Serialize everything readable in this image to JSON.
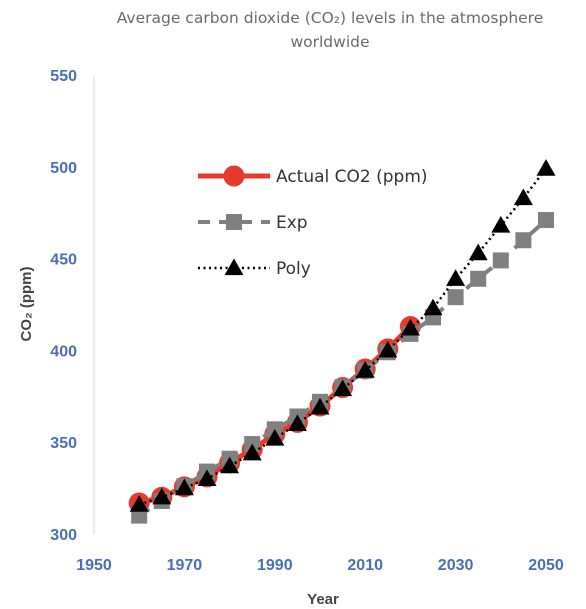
{
  "chart": {
    "title_line1": "Average carbon dioxide (CO₂) levels in the atmosphere",
    "title_line2": "worldwide",
    "xlabel": "Year",
    "ylabel": "CO₂ (ppm)"
  },
  "chart_data": {
    "type": "line",
    "title": "Average carbon dioxide (CO₂) levels in the atmosphere worldwide",
    "xlabel": "Year",
    "ylabel": "CO₂ (ppm)",
    "xlim": [
      1950,
      2050
    ],
    "ylim": [
      300,
      550
    ],
    "x_ticks": [
      1950,
      1970,
      1990,
      2010,
      2030,
      2050
    ],
    "y_ticks": [
      300,
      350,
      400,
      450,
      500,
      550
    ],
    "grid": false,
    "legend_position": "center-left",
    "series": [
      {
        "name": "Actual CO2 (ppm)",
        "marker": "circle",
        "line_style": "solid",
        "color": "#e8392e",
        "x": [
          1960,
          1965,
          1970,
          1975,
          1980,
          1985,
          1990,
          1995,
          2000,
          2005,
          2010,
          2015,
          2020
        ],
        "values": [
          316.9,
          320,
          325.7,
          331.1,
          338.7,
          346,
          354.4,
          360.8,
          369.7,
          379.8,
          389.9,
          400.8,
          413
        ]
      },
      {
        "name": "Exp",
        "marker": "square",
        "line_style": "dashed",
        "color": "#808080",
        "x": [
          1960,
          1965,
          1970,
          1975,
          1980,
          1985,
          1990,
          1995,
          2000,
          2005,
          2010,
          2015,
          2020,
          2025,
          2030,
          2035,
          2040,
          2045,
          2050
        ],
        "values": [
          310,
          318,
          326,
          334,
          341,
          349,
          357,
          364,
          372,
          380,
          389,
          399,
          409,
          418,
          429,
          439,
          449,
          460,
          471
        ]
      },
      {
        "name": "Poly",
        "marker": "triangle",
        "line_style": "dotted",
        "color": "#000000",
        "x": [
          1960,
          1965,
          1970,
          1975,
          1980,
          1985,
          1990,
          1995,
          2000,
          2005,
          2010,
          2015,
          2020,
          2025,
          2030,
          2035,
          2040,
          2045,
          2050
        ],
        "values": [
          316,
          320,
          325,
          330,
          337,
          344,
          352,
          360,
          369,
          379,
          389,
          400,
          412,
          423,
          439,
          453,
          468,
          483,
          499
        ]
      }
    ]
  }
}
